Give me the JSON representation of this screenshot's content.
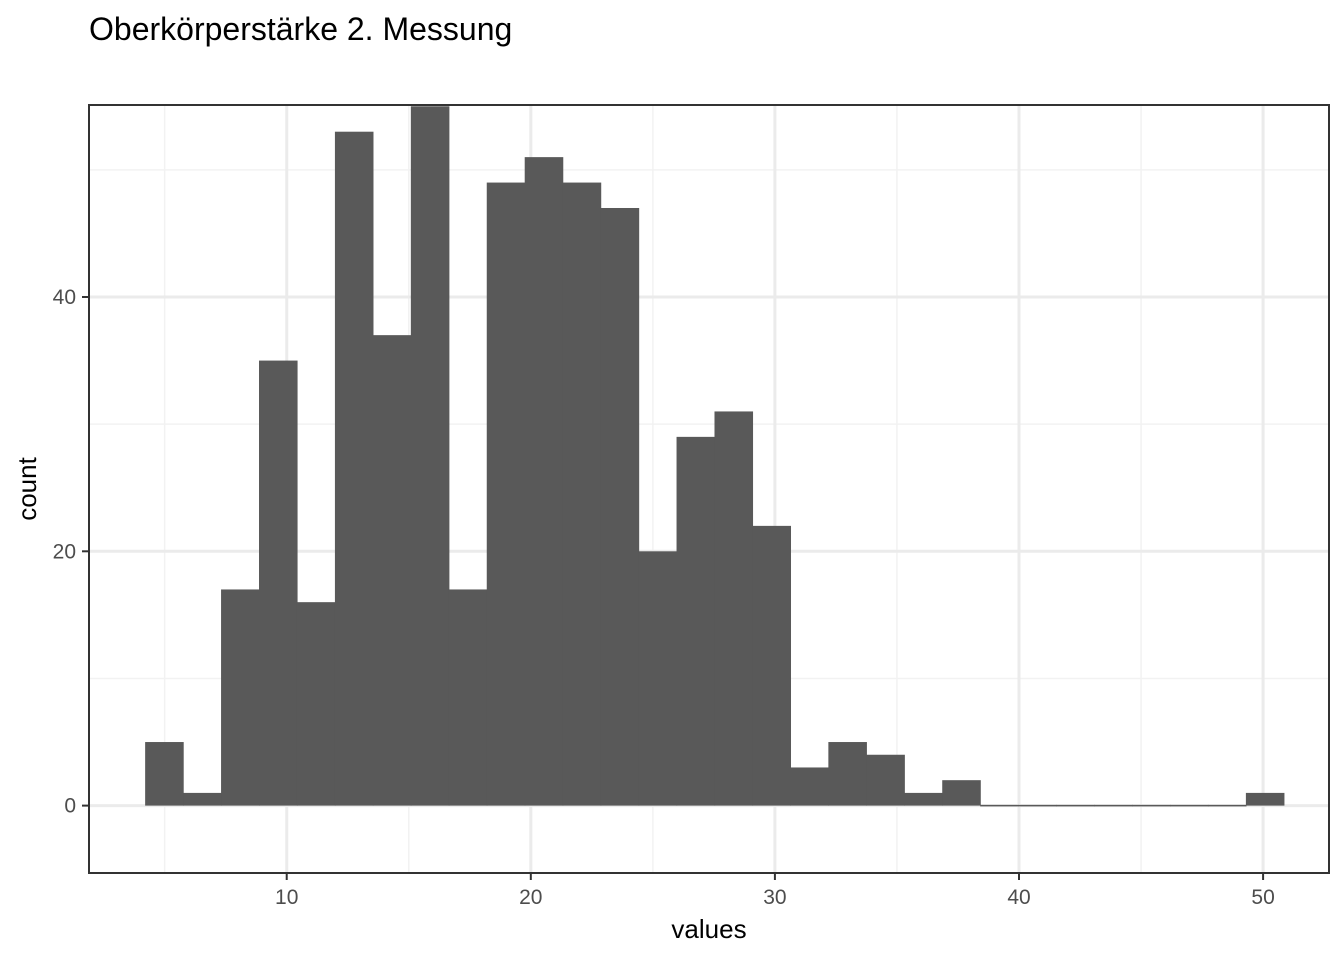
{
  "chart_data": {
    "type": "bar",
    "title": "Oberkörperstärke 2. Messung",
    "xlabel": "values",
    "ylabel": "count",
    "xlim": [
      1.9,
      52.7
    ],
    "ylim": [
      -5.3,
      55.1
    ],
    "x_ticks": [
      10,
      20,
      30,
      40,
      50
    ],
    "y_ticks": [
      0,
      20,
      40
    ],
    "grid": true,
    "legend": "none",
    "bin_width": 1.555,
    "bins": [
      {
        "x_start": 4.2,
        "count": 5
      },
      {
        "x_start": 5.755,
        "count": 1
      },
      {
        "x_start": 7.31,
        "count": 17
      },
      {
        "x_start": 8.865,
        "count": 35
      },
      {
        "x_start": 10.42,
        "count": 16
      },
      {
        "x_start": 11.975,
        "count": 53
      },
      {
        "x_start": 13.53,
        "count": 37
      },
      {
        "x_start": 15.085,
        "count": 55
      },
      {
        "x_start": 16.64,
        "count": 17
      },
      {
        "x_start": 18.195,
        "count": 49
      },
      {
        "x_start": 19.75,
        "count": 51
      },
      {
        "x_start": 21.305,
        "count": 49
      },
      {
        "x_start": 22.86,
        "count": 47
      },
      {
        "x_start": 24.415,
        "count": 20
      },
      {
        "x_start": 25.97,
        "count": 29
      },
      {
        "x_start": 27.525,
        "count": 31
      },
      {
        "x_start": 29.08,
        "count": 22
      },
      {
        "x_start": 30.635,
        "count": 3
      },
      {
        "x_start": 32.19,
        "count": 5
      },
      {
        "x_start": 33.745,
        "count": 4
      },
      {
        "x_start": 35.3,
        "count": 1
      },
      {
        "x_start": 36.855,
        "count": 2
      },
      {
        "x_start": 38.41,
        "count": 0
      },
      {
        "x_start": 39.965,
        "count": 0
      },
      {
        "x_start": 41.52,
        "count": 0
      },
      {
        "x_start": 43.075,
        "count": 0
      },
      {
        "x_start": 44.63,
        "count": 0
      },
      {
        "x_start": 46.185,
        "count": 0
      },
      {
        "x_start": 47.74,
        "count": 0
      },
      {
        "x_start": 49.295,
        "count": 1
      }
    ],
    "colors": {
      "bar_fill": "#595959",
      "panel_border": "#333333",
      "grid_major": "#ebebeb",
      "grid_minor": "#f2f2f2",
      "tick_label": "#4d4d4d"
    }
  }
}
